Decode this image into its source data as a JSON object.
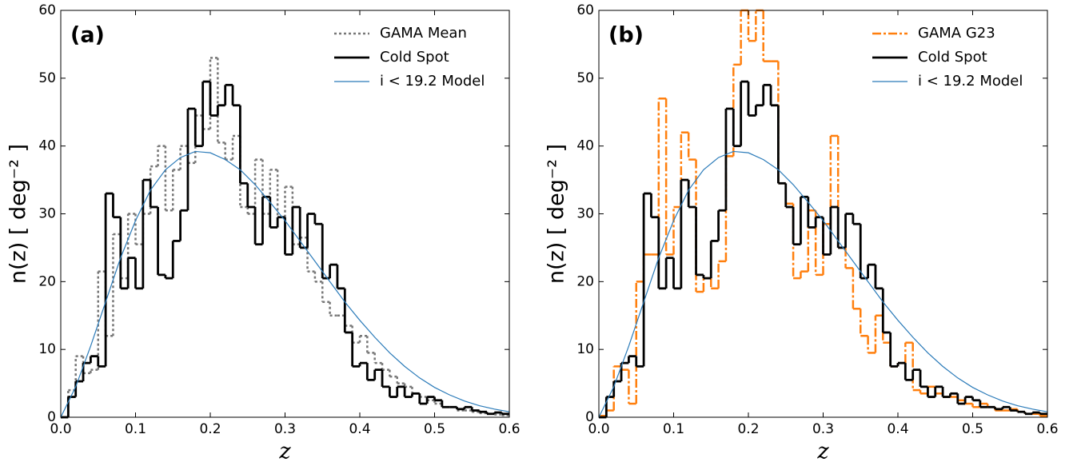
{
  "chart_data": [
    {
      "type": "histogram",
      "panel_label": "(a)",
      "xlabel": "z",
      "ylabel": "n(z) [ deg⁻² ]",
      "xlim": [
        0,
        0.6
      ],
      "ylim": [
        0,
        60
      ],
      "xticks": [
        {
          "value": 0,
          "label": "0.0"
        },
        0.1,
        0.2,
        0.3,
        0.4,
        0.5,
        0.6
      ],
      "yticks": [
        0,
        10,
        20,
        30,
        40,
        50,
        60
      ],
      "legend": "upper right",
      "bins": [
        0,
        0.01,
        0.02,
        0.03,
        0.04,
        0.05,
        0.06,
        0.07,
        0.08,
        0.09,
        0.1,
        0.11,
        0.12,
        0.13,
        0.14,
        0.15,
        0.16,
        0.17,
        0.18,
        0.19,
        0.2,
        0.21,
        0.22,
        0.23,
        0.24,
        0.25,
        0.26,
        0.27,
        0.28,
        0.29,
        0.3,
        0.31,
        0.32,
        0.33,
        0.34,
        0.35,
        0.36,
        0.37,
        0.38,
        0.39,
        0.4,
        0.41,
        0.42,
        0.43,
        0.44,
        0.45,
        0.46,
        0.47,
        0.48,
        0.49,
        0.5,
        0.51,
        0.52,
        0.53,
        0.54,
        0.55,
        0.56,
        0.57,
        0.58,
        0.59,
        0.6
      ],
      "series": [
        {
          "name": "GAMA Mean",
          "color": "#777777",
          "linestyle": "dotted",
          "values": [
            0,
            4,
            9,
            6.5,
            7,
            21.5,
            12,
            27,
            20.5,
            30,
            25.5,
            30,
            37,
            40,
            30.5,
            36.5,
            40,
            37.5,
            44.5,
            42.5,
            53,
            40.5,
            38,
            41.5,
            31,
            30,
            38,
            30,
            36.5,
            29.5,
            34,
            25.5,
            26.5,
            21.5,
            20,
            17,
            15,
            15,
            13.5,
            11,
            12,
            9.5,
            8,
            7,
            6,
            5,
            4.5,
            3.5,
            3,
            2.5,
            2,
            1.5,
            1.5,
            1,
            1,
            0.8,
            0.6,
            0.5,
            0.4,
            0.3
          ]
        },
        {
          "name": "Cold Spot",
          "color": "#000000",
          "linestyle": "solid",
          "values": [
            0,
            3,
            5.3,
            8,
            9,
            7.5,
            33,
            29.5,
            19,
            23.5,
            19,
            35,
            31,
            21,
            20.5,
            26,
            30.5,
            45.5,
            40,
            49.5,
            44.5,
            46,
            49,
            46,
            34.5,
            31,
            25.5,
            32.5,
            28,
            29.5,
            24,
            31,
            25,
            30,
            28.5,
            20.5,
            22.5,
            19,
            12.5,
            7.5,
            8,
            5.5,
            7,
            4.5,
            3,
            4.5,
            3,
            3.5,
            2,
            3,
            2.5,
            1.5,
            1.5,
            1.2,
            1.5,
            1,
            0.8,
            0.5,
            0.7,
            0.5
          ]
        },
        {
          "name": "i < 19.2 Model",
          "color": "#2b7bb9",
          "linestyle": "line",
          "x": [
            0,
            0.02,
            0.04,
            0.06,
            0.08,
            0.1,
            0.12,
            0.14,
            0.16,
            0.18,
            0.2,
            0.22,
            0.24,
            0.26,
            0.28,
            0.3,
            0.32,
            0.34,
            0.36,
            0.38,
            0.4,
            0.42,
            0.44,
            0.46,
            0.48,
            0.5,
            0.52,
            0.54,
            0.56,
            0.58,
            0.6
          ],
          "values": [
            0,
            4.5,
            10.5,
            17,
            23.5,
            29,
            33.5,
            36.5,
            38.3,
            39.2,
            39,
            38,
            36.5,
            34.3,
            31.7,
            29,
            26,
            23,
            20,
            17,
            14.3,
            11.8,
            9.5,
            7.5,
            5.8,
            4.4,
            3.3,
            2.4,
            1.7,
            1.2,
            0.8
          ]
        }
      ]
    },
    {
      "type": "histogram",
      "panel_label": "(b)",
      "xlabel": "z",
      "ylabel": "n(z) [ deg⁻² ]",
      "xlim": [
        0,
        0.6
      ],
      "ylim": [
        0,
        60
      ],
      "xticks": [
        {
          "value": 0,
          "label": "0.0"
        },
        0.1,
        0.2,
        0.3,
        0.4,
        0.5,
        0.6
      ],
      "yticks": [
        0,
        10,
        20,
        30,
        40,
        50,
        60
      ],
      "legend": "upper right",
      "bins": [
        0,
        0.01,
        0.02,
        0.03,
        0.04,
        0.05,
        0.06,
        0.07,
        0.08,
        0.09,
        0.1,
        0.11,
        0.12,
        0.13,
        0.14,
        0.15,
        0.16,
        0.17,
        0.18,
        0.19,
        0.2,
        0.21,
        0.22,
        0.23,
        0.24,
        0.25,
        0.26,
        0.27,
        0.28,
        0.29,
        0.3,
        0.31,
        0.32,
        0.33,
        0.34,
        0.35,
        0.36,
        0.37,
        0.38,
        0.39,
        0.4,
        0.41,
        0.42,
        0.43,
        0.44,
        0.45,
        0.46,
        0.47,
        0.48,
        0.49,
        0.5,
        0.51,
        0.52,
        0.53,
        0.54,
        0.55,
        0.56,
        0.57,
        0.58,
        0.59,
        0.6
      ],
      "series": [
        {
          "name": "GAMA G23",
          "color": "#ff7f0e",
          "linestyle": "dashdot",
          "values": [
            0.2,
            1,
            7.5,
            7,
            2,
            20,
            24,
            24,
            47,
            24,
            31,
            42,
            38,
            18.5,
            20.5,
            19,
            23,
            38.5,
            52,
            60,
            55.5,
            60,
            52.5,
            52.5,
            34.5,
            31.5,
            20.5,
            21.5,
            30.5,
            21,
            28.5,
            41.5,
            25,
            22,
            16,
            12,
            9.5,
            15,
            11,
            7.5,
            8,
            11,
            4,
            3.5,
            4.5,
            3.5,
            3,
            3,
            2.5,
            2,
            1.5,
            2,
            1.5,
            1,
            1,
            1.2,
            0.8,
            0.5,
            0.5,
            0.2
          ]
        },
        {
          "name": "Cold Spot",
          "color": "#000000",
          "linestyle": "solid",
          "values": [
            0,
            3,
            5.3,
            8,
            9,
            7.5,
            33,
            29.5,
            19,
            23.5,
            19,
            35,
            31,
            21,
            20.5,
            26,
            30.5,
            45.5,
            40,
            49.5,
            44.5,
            46,
            49,
            46,
            34.5,
            31,
            25.5,
            32.5,
            28,
            29.5,
            24,
            31,
            25,
            30,
            28.5,
            20.5,
            22.5,
            19,
            12.5,
            7.5,
            8,
            5.5,
            7,
            4.5,
            3,
            4.5,
            3,
            3.5,
            2,
            3,
            2.5,
            1.5,
            1.5,
            1.2,
            1.5,
            1,
            0.8,
            0.5,
            0.7,
            0.5
          ]
        },
        {
          "name": "i < 19.2 Model",
          "color": "#2b7bb9",
          "linestyle": "line",
          "x": [
            0,
            0.02,
            0.04,
            0.06,
            0.08,
            0.1,
            0.12,
            0.14,
            0.16,
            0.18,
            0.2,
            0.22,
            0.24,
            0.26,
            0.28,
            0.3,
            0.32,
            0.34,
            0.36,
            0.38,
            0.4,
            0.42,
            0.44,
            0.46,
            0.48,
            0.5,
            0.52,
            0.54,
            0.56,
            0.58,
            0.6
          ],
          "values": [
            0,
            4.5,
            10.5,
            17,
            23.5,
            29,
            33.5,
            36.5,
            38.3,
            39.2,
            39,
            38,
            36.5,
            34.3,
            31.7,
            29,
            26,
            23,
            20,
            17,
            14.3,
            11.8,
            9.5,
            7.5,
            5.8,
            4.4,
            3.3,
            2.4,
            1.7,
            1.2,
            0.8
          ]
        }
      ]
    }
  ]
}
